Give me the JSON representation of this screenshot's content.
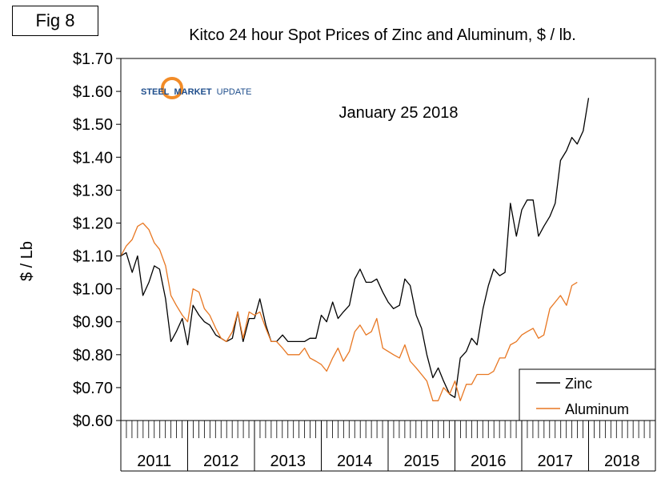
{
  "figure_label": "Fig 8",
  "logo": {
    "text": "STEEL MARKET UPDATE",
    "word1": "STEEL",
    "word2": "MARKET",
    "word3": "UPDATE"
  },
  "colors": {
    "zinc": "#000000",
    "aluminum": "#e87722",
    "logo_blue": "#1f4e8c",
    "logo_orange": "#f28c28"
  },
  "chart_data": {
    "type": "line",
    "title": "Kitco 24 hour Spot Prices of Zinc and Aluminum, $ / lb.",
    "annotation": "January 25 2018",
    "xlabel": "",
    "ylabel": "$ / Lb",
    "ylim": [
      0.6,
      1.7
    ],
    "yticks": [
      0.6,
      0.7,
      0.8,
      0.9,
      1.0,
      1.1,
      1.2,
      1.3,
      1.4,
      1.5,
      1.6,
      1.7
    ],
    "ytick_labels": [
      "$0.60",
      "$0.70",
      "$0.80",
      "$0.90",
      "$1.00",
      "$1.10",
      "$1.20",
      "$1.30",
      "$1.40",
      "$1.50",
      "$1.60",
      "$1.70"
    ],
    "x_categories": [
      "2011",
      "2012",
      "2013",
      "2014",
      "2015",
      "2016",
      "2017",
      "2018"
    ],
    "minor_ticks_per_year": 12,
    "x_range": [
      2011.0,
      2019.0
    ],
    "legend": {
      "position": "bottom-right",
      "entries": [
        "Zinc",
        "Aluminum"
      ]
    },
    "series": [
      {
        "name": "Zinc",
        "x": [
          2011.0,
          2011.08,
          2011.17,
          2011.25,
          2011.33,
          2011.42,
          2011.5,
          2011.58,
          2011.67,
          2011.75,
          2011.83,
          2011.92,
          2012.0,
          2012.08,
          2012.17,
          2012.25,
          2012.33,
          2012.42,
          2012.5,
          2012.58,
          2012.67,
          2012.75,
          2012.83,
          2012.92,
          2013.0,
          2013.08,
          2013.17,
          2013.25,
          2013.33,
          2013.42,
          2013.5,
          2013.58,
          2013.67,
          2013.75,
          2013.83,
          2013.92,
          2014.0,
          2014.08,
          2014.17,
          2014.25,
          2014.33,
          2014.42,
          2014.5,
          2014.58,
          2014.67,
          2014.75,
          2014.83,
          2014.92,
          2015.0,
          2015.08,
          2015.17,
          2015.25,
          2015.33,
          2015.42,
          2015.5,
          2015.58,
          2015.67,
          2015.75,
          2015.83,
          2015.92,
          2016.0,
          2016.08,
          2016.17,
          2016.25,
          2016.33,
          2016.42,
          2016.5,
          2016.58,
          2016.67,
          2016.75,
          2016.83,
          2016.92,
          2017.0,
          2017.08,
          2017.17,
          2017.25,
          2017.33,
          2017.42,
          2017.5,
          2017.58,
          2017.67,
          2017.75,
          2017.83,
          2017.92,
          2018.0,
          2018.08
        ],
        "values": [
          1.1,
          1.11,
          1.05,
          1.1,
          0.98,
          1.02,
          1.07,
          1.06,
          0.97,
          0.84,
          0.87,
          0.91,
          0.83,
          0.95,
          0.92,
          0.9,
          0.89,
          0.86,
          0.85,
          0.84,
          0.85,
          0.93,
          0.84,
          0.91,
          0.91,
          0.97,
          0.89,
          0.84,
          0.84,
          0.86,
          0.84,
          0.84,
          0.84,
          0.84,
          0.85,
          0.85,
          0.92,
          0.9,
          0.96,
          0.91,
          0.93,
          0.95,
          1.03,
          1.06,
          1.02,
          1.02,
          1.03,
          0.99,
          0.96,
          0.94,
          0.95,
          1.03,
          1.01,
          0.92,
          0.88,
          0.8,
          0.73,
          0.76,
          0.72,
          0.68,
          0.67,
          0.79,
          0.81,
          0.85,
          0.83,
          0.94,
          1.01,
          1.06,
          1.04,
          1.05,
          1.26,
          1.16,
          1.24,
          1.27,
          1.27,
          1.16,
          1.19,
          1.22,
          1.26,
          1.39,
          1.42,
          1.46,
          1.44,
          1.48,
          1.58,
          null
        ]
      },
      {
        "name": "Aluminum",
        "x": [
          2011.0,
          2011.08,
          2011.17,
          2011.25,
          2011.33,
          2011.42,
          2011.5,
          2011.58,
          2011.67,
          2011.75,
          2011.83,
          2011.92,
          2012.0,
          2012.08,
          2012.17,
          2012.25,
          2012.33,
          2012.42,
          2012.5,
          2012.58,
          2012.67,
          2012.75,
          2012.83,
          2012.92,
          2013.0,
          2013.08,
          2013.17,
          2013.25,
          2013.33,
          2013.42,
          2013.5,
          2013.58,
          2013.67,
          2013.75,
          2013.83,
          2013.92,
          2014.0,
          2014.08,
          2014.17,
          2014.25,
          2014.33,
          2014.42,
          2014.5,
          2014.58,
          2014.67,
          2014.75,
          2014.83,
          2014.92,
          2015.0,
          2015.08,
          2015.17,
          2015.25,
          2015.33,
          2015.42,
          2015.5,
          2015.58,
          2015.67,
          2015.75,
          2015.83,
          2015.92,
          2016.0,
          2016.08,
          2016.17,
          2016.25,
          2016.33,
          2016.42,
          2016.5,
          2016.58,
          2016.67,
          2016.75,
          2016.83,
          2016.92,
          2017.0,
          2017.08,
          2017.17,
          2017.25,
          2017.33,
          2017.42,
          2017.5,
          2017.58,
          2017.67,
          2017.75,
          2017.83,
          2017.92,
          2018.0,
          2018.08
        ],
        "values": [
          1.1,
          1.13,
          1.15,
          1.19,
          1.2,
          1.18,
          1.14,
          1.12,
          1.07,
          0.98,
          0.95,
          0.92,
          0.9,
          1.0,
          0.99,
          0.94,
          0.92,
          0.88,
          0.85,
          0.84,
          0.87,
          0.93,
          0.85,
          0.93,
          0.92,
          0.93,
          0.88,
          0.84,
          0.84,
          0.82,
          0.8,
          0.8,
          0.8,
          0.82,
          0.79,
          0.78,
          0.77,
          0.75,
          0.79,
          0.82,
          0.78,
          0.81,
          0.87,
          0.89,
          0.86,
          0.87,
          0.91,
          0.82,
          0.81,
          0.8,
          0.79,
          0.83,
          0.78,
          0.76,
          0.74,
          0.72,
          0.66,
          0.66,
          0.7,
          0.68,
          0.72,
          0.66,
          0.71,
          0.71,
          0.74,
          0.74,
          0.74,
          0.75,
          0.79,
          0.79,
          0.83,
          0.84,
          0.86,
          0.87,
          0.88,
          0.85,
          0.86,
          0.94,
          0.96,
          0.98,
          0.95,
          1.01,
          1.02,
          null,
          null,
          null
        ]
      }
    ]
  }
}
